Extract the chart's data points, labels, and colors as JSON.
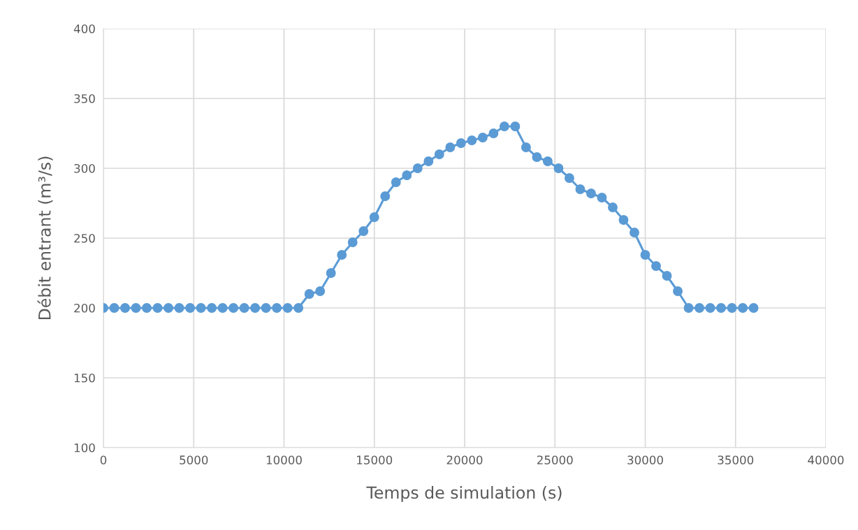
{
  "chart_data": {
    "type": "line",
    "xlabel": "Temps de simulation (s)",
    "ylabel": "Débit entrant (m³/s)",
    "x": [
      0,
      600,
      1200,
      1800,
      2400,
      3000,
      3600,
      4200,
      4800,
      5400,
      6000,
      6600,
      7200,
      7800,
      8400,
      9000,
      9600,
      10200,
      10800,
      11400,
      12000,
      12600,
      13200,
      13800,
      14400,
      15000,
      15600,
      16200,
      16800,
      17400,
      18000,
      18600,
      19200,
      19800,
      20400,
      21000,
      21600,
      22200,
      22800,
      23400,
      24000,
      24600,
      25200,
      25800,
      26400,
      27000,
      27600,
      28200,
      28800,
      29400,
      30000,
      30600,
      31200,
      31800,
      32400,
      33000,
      33600,
      34200,
      34800,
      35400,
      36000
    ],
    "series": [
      {
        "color": "#5b9bd5",
        "values": [
          200,
          200,
          200,
          200,
          200,
          200,
          200,
          200,
          200,
          200,
          200,
          200,
          200,
          200,
          200,
          200,
          200,
          200,
          200,
          210,
          212,
          225,
          238,
          247,
          255,
          265,
          280,
          290,
          295,
          300,
          305,
          310,
          315,
          318,
          320,
          322,
          325,
          330,
          330,
          315,
          308,
          305,
          300,
          293,
          285,
          282,
          279,
          272,
          263,
          254,
          238,
          230,
          223,
          212,
          200,
          200,
          200,
          200,
          200,
          200,
          200
        ]
      }
    ],
    "xlim": [
      0,
      40000
    ],
    "xticks": [
      0,
      5000,
      10000,
      15000,
      20000,
      25000,
      30000,
      35000,
      40000
    ],
    "ylim": [
      100,
      400
    ],
    "yticks": [
      100,
      150,
      200,
      250,
      300,
      350,
      400
    ],
    "grid": true,
    "marker": "circle",
    "line_style": "solid"
  }
}
